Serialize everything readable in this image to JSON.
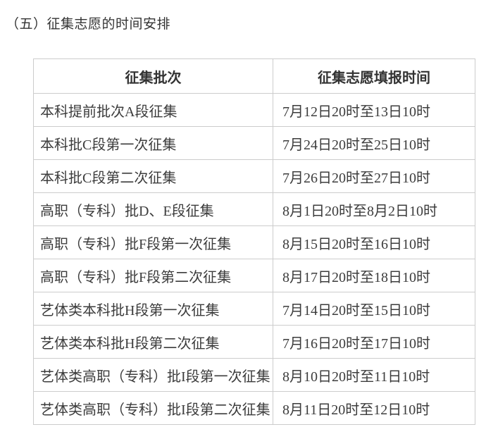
{
  "page": {
    "heading": "（五）征集志愿的时间安排"
  },
  "colors": {
    "text": "#3c3c3c",
    "heading_text": "#333333",
    "border": "#cccccc",
    "background": "#ffffff"
  },
  "table": {
    "headers": [
      "征集批次",
      "征集志愿填报时间"
    ],
    "rows": [
      [
        "本科提前批次A段征集",
        "7月12日20时至13日10时"
      ],
      [
        "本科批C段第一次征集",
        "7月24日20时至25日10时"
      ],
      [
        "本科批C段第二次征集",
        "7月26日20时至27日10时"
      ],
      [
        "高职（专科）批D、E段征集",
        "8月1日20时至8月2日10时"
      ],
      [
        "高职（专科）批F段第一次征集",
        "8月15日20时至16日10时"
      ],
      [
        "高职（专科）批F段第二次征集",
        "8月17日20时至18日10时"
      ],
      [
        "艺体类本科批H段第一次征集",
        "7月14日20时至15日10时"
      ],
      [
        "艺体类本科批H段第二次征集",
        "7月16日20时至17日10时"
      ],
      [
        "艺体类高职（专科）批I段第一次征集",
        "8月10日20时至11日10时"
      ],
      [
        "艺体类高职（专科）批I段第二次征集",
        "8月11日20时至12日10时"
      ]
    ]
  }
}
